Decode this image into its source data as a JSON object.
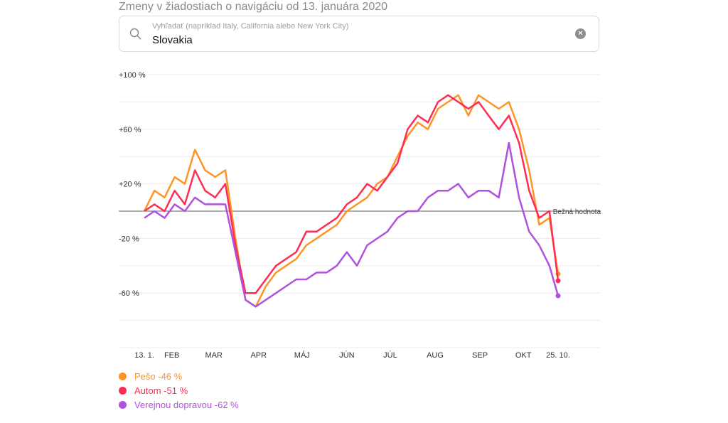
{
  "header": {
    "title": "Zmeny v žiadostiach o navigáciu od 13. januára 2020"
  },
  "search": {
    "placeholder": "Vyhľadať (napríklad Italy, California alebo New York City)",
    "value": "Slovakia",
    "icon": "search-icon",
    "clear_icon": "close-circle-icon"
  },
  "chart_data": {
    "type": "line",
    "ylim": [
      -100,
      100
    ],
    "y_ticks": [
      100,
      60,
      20,
      -20,
      -60
    ],
    "y_tick_labels": [
      "+100 %",
      "+60 %",
      "+20 %",
      "-20 %",
      "-60 %"
    ],
    "grid": true,
    "baseline": {
      "value": 0,
      "label": "Bežná hodnota"
    },
    "x_ticks": [
      {
        "date": "2020-01-13",
        "label": "13. 1."
      },
      {
        "date": "2020-02-01",
        "label": "FEB"
      },
      {
        "date": "2020-03-01",
        "label": "MAR"
      },
      {
        "date": "2020-04-01",
        "label": "APR"
      },
      {
        "date": "2020-05-01",
        "label": "MÁJ"
      },
      {
        "date": "2020-06-01",
        "label": "JÚN"
      },
      {
        "date": "2020-07-01",
        "label": "JÚL"
      },
      {
        "date": "2020-08-01",
        "label": "AUG"
      },
      {
        "date": "2020-09-01",
        "label": "SEP"
      },
      {
        "date": "2020-10-01",
        "label": "OKT"
      },
      {
        "date": "2020-10-25",
        "label": "25. 10."
      }
    ],
    "x": [
      "2020-01-13",
      "2020-01-20",
      "2020-01-27",
      "2020-02-03",
      "2020-02-10",
      "2020-02-17",
      "2020-02-24",
      "2020-03-02",
      "2020-03-09",
      "2020-03-16",
      "2020-03-23",
      "2020-03-30",
      "2020-04-06",
      "2020-04-13",
      "2020-04-20",
      "2020-04-27",
      "2020-05-04",
      "2020-05-11",
      "2020-05-18",
      "2020-05-25",
      "2020-06-01",
      "2020-06-08",
      "2020-06-15",
      "2020-06-22",
      "2020-06-29",
      "2020-07-06",
      "2020-07-13",
      "2020-07-20",
      "2020-07-27",
      "2020-08-03",
      "2020-08-10",
      "2020-08-17",
      "2020-08-24",
      "2020-08-31",
      "2020-09-07",
      "2020-09-14",
      "2020-09-21",
      "2020-09-28",
      "2020-10-05",
      "2020-10-12",
      "2020-10-19",
      "2020-10-25"
    ],
    "series": [
      {
        "name": "Pešo",
        "label": "Pešo -46 %",
        "color": "#ff9426",
        "values": [
          0,
          15,
          10,
          25,
          20,
          45,
          30,
          25,
          30,
          -20,
          -65,
          -70,
          -55,
          -45,
          -40,
          -35,
          -25,
          -20,
          -15,
          -10,
          0,
          5,
          10,
          20,
          25,
          40,
          55,
          65,
          60,
          75,
          80,
          85,
          70,
          85,
          80,
          75,
          80,
          60,
          30,
          -10,
          -5,
          -46
        ]
      },
      {
        "name": "Autom",
        "label": "Autom -51 %",
        "color": "#ff2d55",
        "values": [
          0,
          5,
          0,
          15,
          5,
          30,
          15,
          10,
          20,
          -25,
          -60,
          -60,
          -50,
          -40,
          -35,
          -30,
          -15,
          -15,
          -10,
          -5,
          5,
          10,
          20,
          15,
          25,
          35,
          60,
          70,
          65,
          80,
          85,
          80,
          75,
          80,
          70,
          60,
          70,
          50,
          15,
          -5,
          0,
          -51
        ]
      },
      {
        "name": "Verejnou dopravou",
        "label": "Verejnou dopravou -62 %",
        "color": "#af52de",
        "values": [
          -5,
          0,
          -5,
          5,
          0,
          10,
          5,
          5,
          5,
          -30,
          -65,
          -70,
          -65,
          -60,
          -55,
          -50,
          -50,
          -45,
          -45,
          -40,
          -30,
          -40,
          -25,
          -20,
          -15,
          -5,
          0,
          0,
          10,
          15,
          15,
          20,
          10,
          15,
          15,
          10,
          50,
          10,
          -15,
          -25,
          -40,
          -62
        ]
      }
    ]
  }
}
